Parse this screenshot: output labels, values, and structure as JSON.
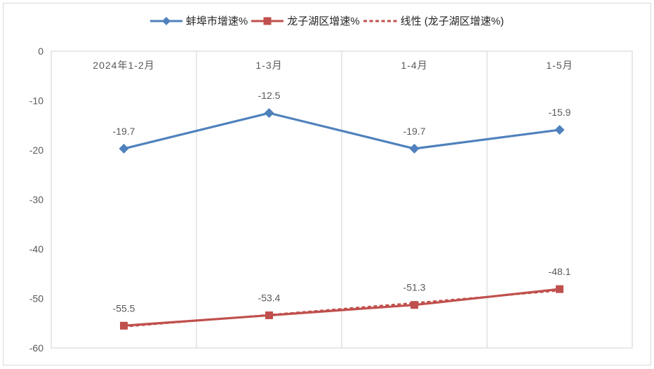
{
  "chart_data": {
    "type": "line",
    "categories": [
      "2024年1-2月",
      "1-3月",
      "1-4月",
      "1-5月"
    ],
    "series": [
      {
        "name": "蚌埠市增速%",
        "values": [
          -19.7,
          -12.5,
          -19.7,
          -15.9
        ],
        "color": "#4F81BD",
        "marker": "diamond",
        "line_style": "solid",
        "data_labels": true
      },
      {
        "name": "龙子湖区增速%",
        "values": [
          -55.5,
          -53.4,
          -51.3,
          -48.1
        ],
        "color": "#C0504D",
        "marker": "square",
        "line_style": "solid",
        "data_labels": true
      },
      {
        "name": "线性 (龙子湖区增速%)",
        "trendline_of": "龙子湖区增速%",
        "values": [
          -55.7,
          -53.3,
          -50.9,
          -48.4
        ],
        "color": "#C0504D",
        "marker": "none",
        "line_style": "dashed",
        "data_labels": false
      }
    ],
    "ylim": [
      -60,
      0
    ],
    "yticks": [
      0,
      -10,
      -20,
      -30,
      -40,
      -50,
      -60
    ],
    "grid": "vertical-only",
    "legend_position": "top",
    "colors": {
      "grid": "#d9d9d9",
      "frame_border": "#d9d9d9",
      "axis_text": "#595959",
      "data_label_text": "#595959",
      "legend_text": "#262626"
    }
  }
}
